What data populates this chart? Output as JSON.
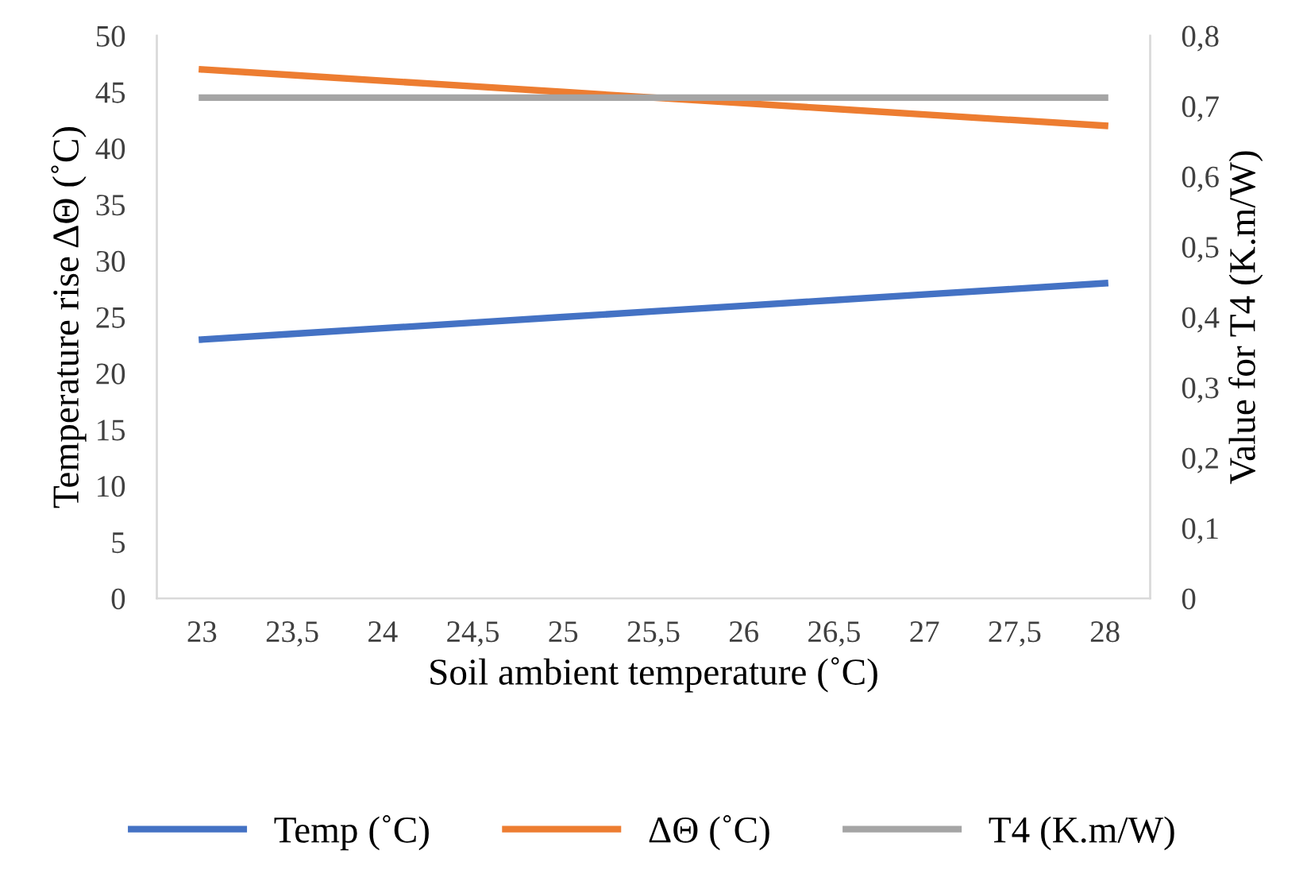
{
  "chart_data": {
    "type": "line",
    "xlabel": "Soil ambient temperature (˚C)",
    "ylabel": "Temperature rise ΔΘ (˚C)",
    "y2label": "Value for T4 (K.m/W)",
    "categories": [
      "23",
      "23,5",
      "24",
      "24,5",
      "25",
      "25,5",
      "26",
      "26,5",
      "27",
      "27,5",
      "28"
    ],
    "series": [
      {
        "name": "Temp (˚C)",
        "color": "#4472c4",
        "values": [
          23,
          23.5,
          24,
          24.5,
          25,
          25.5,
          26,
          26.5,
          27,
          27.5,
          28
        ]
      },
      {
        "name": "ΔΘ (˚C)",
        "color": "#ed7d31",
        "values": [
          47,
          46.5,
          46,
          45.5,
          45,
          44.5,
          44,
          43.5,
          43,
          42.5,
          42
        ]
      },
      {
        "name": "T4 (K.m/W)",
        "color": "#a5a5a5",
        "axis": "y2",
        "values": [
          0.712,
          0.712,
          0.712,
          0.712,
          0.712,
          0.712,
          0.712,
          0.712,
          0.712,
          0.712,
          0.712
        ]
      }
    ],
    "ylim": [
      0,
      50
    ],
    "yticks": [
      0,
      5,
      10,
      15,
      20,
      25,
      30,
      35,
      40,
      45,
      50
    ],
    "y2lim": [
      0,
      0.8
    ],
    "y2ticks": [
      0,
      {
        "value": 0.1,
        "label": "0,1"
      },
      {
        "value": 0.2,
        "label": "0,2"
      },
      {
        "value": 0.3,
        "label": "0,3"
      },
      {
        "value": 0.4,
        "label": "0,4"
      },
      {
        "value": 0.5,
        "label": "0,5"
      },
      {
        "value": 0.6,
        "label": "0,6"
      },
      {
        "value": 0.7,
        "label": "0,7"
      },
      {
        "value": 0.8,
        "label": "0,8"
      }
    ],
    "grid": false,
    "legend": "bottom",
    "marker": "none",
    "line_style": "solid"
  }
}
